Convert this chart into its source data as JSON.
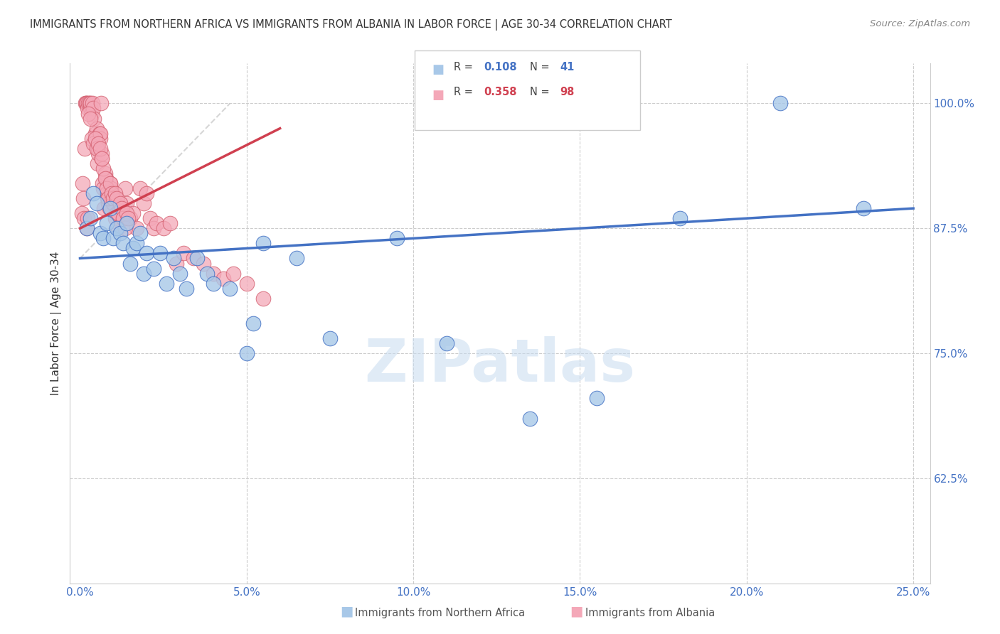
{
  "title": "IMMIGRANTS FROM NORTHERN AFRICA VS IMMIGRANTS FROM ALBANIA IN LABOR FORCE | AGE 30-34 CORRELATION CHART",
  "source": "Source: ZipAtlas.com",
  "xlim": [
    -0.3,
    25.5
  ],
  "ylim": [
    52.0,
    104.0
  ],
  "xticks": [
    0,
    5,
    10,
    15,
    20,
    25
  ],
  "xticklabels": [
    "0.0%",
    "5.0%",
    "10.0%",
    "15.0%",
    "20.0%",
    "25.0%"
  ],
  "yticks_right": [
    62.5,
    75.0,
    87.5,
    100.0
  ],
  "yticklabels_right": [
    "62.5%",
    "75.0%",
    "87.5%",
    "100.0%"
  ],
  "watermark": "ZIPatlas",
  "legend_blue_r": "0.108",
  "legend_blue_n": "41",
  "legend_pink_r": "0.358",
  "legend_pink_n": "98",
  "color_blue_fill": "#A8C8E8",
  "color_blue_edge": "#4472C4",
  "color_pink_fill": "#F4A8B8",
  "color_pink_edge": "#D46070",
  "color_blue_line": "#4472C4",
  "color_pink_line": "#D04050",
  "ylabel": "In Labor Force | Age 30-34",
  "blue_x": [
    0.2,
    0.3,
    0.4,
    0.5,
    0.6,
    0.7,
    0.8,
    0.9,
    1.0,
    1.1,
    1.2,
    1.3,
    1.4,
    1.5,
    1.6,
    1.7,
    1.8,
    1.9,
    2.0,
    2.2,
    2.4,
    2.6,
    2.8,
    3.0,
    3.2,
    3.5,
    3.8,
    4.0,
    4.5,
    5.5,
    6.5,
    7.5,
    9.5,
    11.0,
    13.5,
    15.5,
    18.0,
    21.0,
    23.5,
    5.0,
    5.2
  ],
  "blue_y": [
    87.5,
    88.5,
    91.0,
    90.0,
    87.0,
    86.5,
    88.0,
    89.5,
    86.5,
    87.5,
    87.0,
    86.0,
    88.0,
    84.0,
    85.5,
    86.0,
    87.0,
    83.0,
    85.0,
    83.5,
    85.0,
    82.0,
    84.5,
    83.0,
    81.5,
    84.5,
    83.0,
    82.0,
    81.5,
    86.0,
    84.5,
    76.5,
    86.5,
    76.0,
    68.5,
    70.5,
    88.5,
    100.0,
    89.5,
    75.0,
    78.0
  ],
  "pink_x": [
    0.05,
    0.08,
    0.1,
    0.12,
    0.14,
    0.15,
    0.18,
    0.2,
    0.22,
    0.25,
    0.28,
    0.3,
    0.32,
    0.35,
    0.38,
    0.4,
    0.42,
    0.45,
    0.48,
    0.5,
    0.52,
    0.55,
    0.58,
    0.6,
    0.62,
    0.65,
    0.68,
    0.7,
    0.72,
    0.75,
    0.78,
    0.8,
    0.82,
    0.85,
    0.88,
    0.9,
    0.92,
    0.95,
    0.98,
    1.0,
    1.05,
    1.1,
    1.15,
    1.2,
    1.25,
    1.3,
    1.35,
    1.4,
    1.5,
    1.6,
    1.7,
    1.8,
    1.9,
    2.0,
    2.1,
    2.2,
    2.3,
    2.5,
    2.7,
    2.9,
    3.1,
    3.4,
    3.7,
    4.0,
    4.3,
    4.6,
    5.0,
    5.5,
    0.35,
    0.4,
    0.55,
    0.6,
    0.65,
    0.7,
    0.75,
    0.8,
    0.85,
    0.9,
    0.95,
    1.0,
    1.05,
    1.1,
    1.15,
    1.2,
    1.25,
    1.3,
    1.35,
    1.4,
    1.45,
    0.25,
    0.3,
    0.45,
    0.5,
    0.55,
    0.6,
    0.65,
    0.2,
    0.22
  ],
  "pink_y": [
    89.0,
    92.0,
    90.5,
    88.5,
    95.5,
    100.0,
    100.0,
    100.0,
    99.5,
    100.0,
    100.0,
    99.5,
    100.0,
    99.0,
    100.0,
    99.5,
    98.5,
    97.0,
    96.5,
    97.5,
    94.0,
    95.0,
    97.0,
    96.5,
    100.0,
    94.5,
    92.0,
    91.5,
    89.5,
    93.0,
    92.5,
    91.0,
    90.5,
    90.0,
    89.5,
    92.0,
    91.5,
    90.5,
    91.0,
    90.0,
    88.5,
    89.0,
    87.5,
    90.0,
    89.5,
    88.5,
    91.5,
    90.0,
    88.5,
    89.0,
    87.5,
    91.5,
    90.0,
    91.0,
    88.5,
    87.5,
    88.0,
    87.5,
    88.0,
    84.0,
    85.0,
    84.5,
    84.0,
    83.0,
    82.5,
    83.0,
    82.0,
    80.5,
    96.5,
    96.0,
    95.5,
    97.0,
    95.0,
    93.5,
    92.5,
    91.5,
    90.5,
    92.0,
    91.0,
    90.5,
    91.0,
    90.5,
    89.0,
    90.0,
    89.5,
    88.5,
    87.5,
    89.0,
    88.5,
    99.0,
    98.5,
    96.5,
    95.5,
    96.0,
    95.5,
    94.5,
    87.5,
    88.5
  ],
  "ref_line_x": [
    0.0,
    4.5
  ],
  "ref_line_y": [
    84.5,
    100.0
  ],
  "blue_line_x0": 0.0,
  "blue_line_x1": 25.0,
  "blue_line_y0": 84.5,
  "blue_line_y1": 89.5,
  "pink_line_x0": 0.0,
  "pink_line_x1": 6.0,
  "pink_line_y0": 87.5,
  "pink_line_y1": 97.5
}
